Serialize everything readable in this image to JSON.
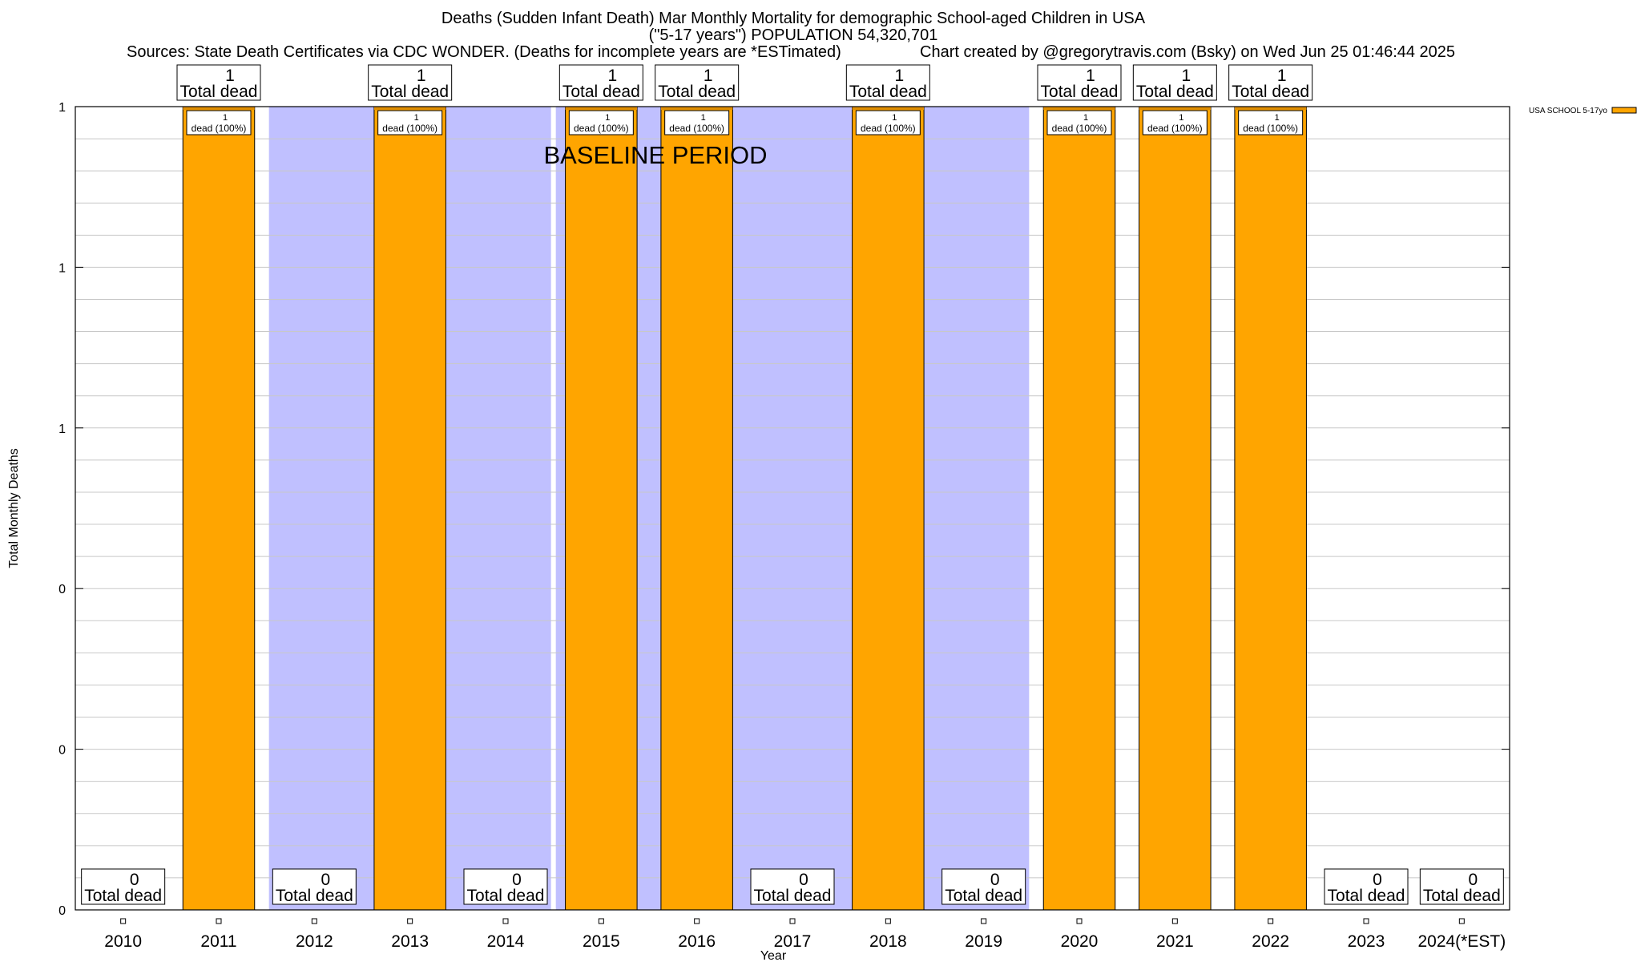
{
  "title": {
    "line1": "Deaths (Sudden Infant Death) Mar Monthly Mortality for demographic School-aged Children in USA",
    "line2": "(\"5-17 years\") POPULATION 54,320,701",
    "sources": "Sources: State Death Certificates via CDC WONDER. (Deaths for incomplete years are *ESTimated)",
    "credit": "Chart created by @gregorytravis.com (Bsky) on Wed Jun 25 01:46:44 2025"
  },
  "colors": {
    "bar": "#FFA500",
    "baseline_band": "#C0C0FF",
    "grid": "#C8C8C8",
    "axis": "#000000"
  },
  "chart_data": {
    "type": "bar",
    "categories": [
      "2010",
      "2011",
      "2012",
      "2013",
      "2014",
      "2015",
      "2016",
      "2017",
      "2018",
      "2019",
      "2020",
      "2021",
      "2022",
      "2023",
      "2024(*EST)"
    ],
    "series": [
      {
        "name": "USA SCHOOL 5-17yo",
        "values": [
          0,
          1,
          0,
          1,
          0,
          1,
          1,
          0,
          1,
          0,
          1,
          1,
          1,
          0,
          0
        ]
      }
    ],
    "total_labels": [
      "0",
      "1",
      "0",
      "1",
      "0",
      "1",
      "1",
      "0",
      "1",
      "0",
      "1",
      "1",
      "1",
      "0",
      "0"
    ],
    "total_suffix": "Total dead",
    "inner_label_top": "1",
    "inner_label_bottom": "dead (100%)",
    "xlabel": "Year",
    "ylabel": "Total Monthly Deaths",
    "ylim": [
      0,
      1
    ],
    "y_tick_labels": [
      "0",
      "0",
      "0",
      "1",
      "1",
      "1"
    ],
    "y_tick_values": [
      0,
      0.2,
      0.4,
      0.6,
      0.8,
      1.0
    ],
    "y_minor_step": 0.04,
    "baseline_label": "BASELINE PERIOD",
    "baseline_band_categories": [
      [
        "2012",
        "2014"
      ],
      [
        "2015",
        "2019"
      ]
    ],
    "grid": true,
    "legend": {
      "position": "top-right",
      "label": "USA SCHOOL 5-17yo"
    }
  }
}
